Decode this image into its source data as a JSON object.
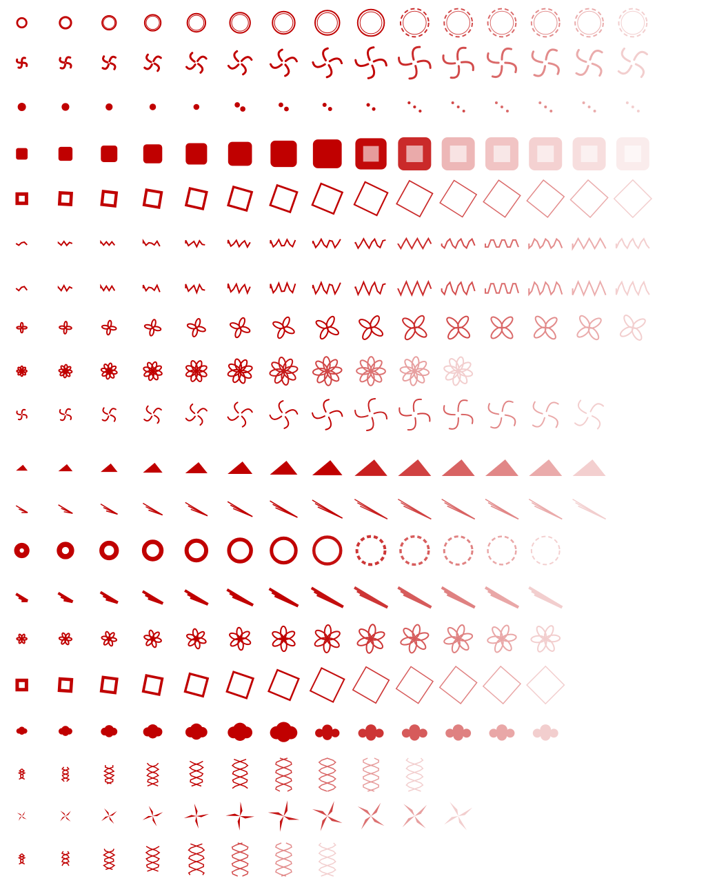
{
  "sheet": {
    "background": "#ffffff",
    "ink": "#c00000",
    "rows": [
      {
        "shape": "ring",
        "frames": 15
      },
      {
        "shape": "pinwheel",
        "frames": 15
      },
      {
        "shape": "dots",
        "frames": 15
      },
      {
        "shape": "blob",
        "frames": 15
      },
      {
        "shape": "hollow-square",
        "frames": 15
      },
      {
        "shape": "wave",
        "frames": 15
      },
      {
        "shape": "wave-dense",
        "frames": 15
      },
      {
        "shape": "clover",
        "frames": 15
      },
      {
        "shape": "spiral-flower",
        "frames": 11
      },
      {
        "shape": "crescent-swirl",
        "frames": 14
      },
      {
        "shape": "triangle",
        "frames": 14
      },
      {
        "shape": "streak",
        "frames": 14
      },
      {
        "shape": "donut",
        "frames": 13
      },
      {
        "shape": "diagonal",
        "frames": 13
      },
      {
        "shape": "rosette",
        "frames": 13
      },
      {
        "shape": "square-ring",
        "frames": 13
      },
      {
        "shape": "cloud",
        "frames": 13
      },
      {
        "shape": "helix",
        "frames": 10
      },
      {
        "shape": "star-burst",
        "frames": 11
      },
      {
        "shape": "helix-wide",
        "frames": 8
      }
    ]
  }
}
